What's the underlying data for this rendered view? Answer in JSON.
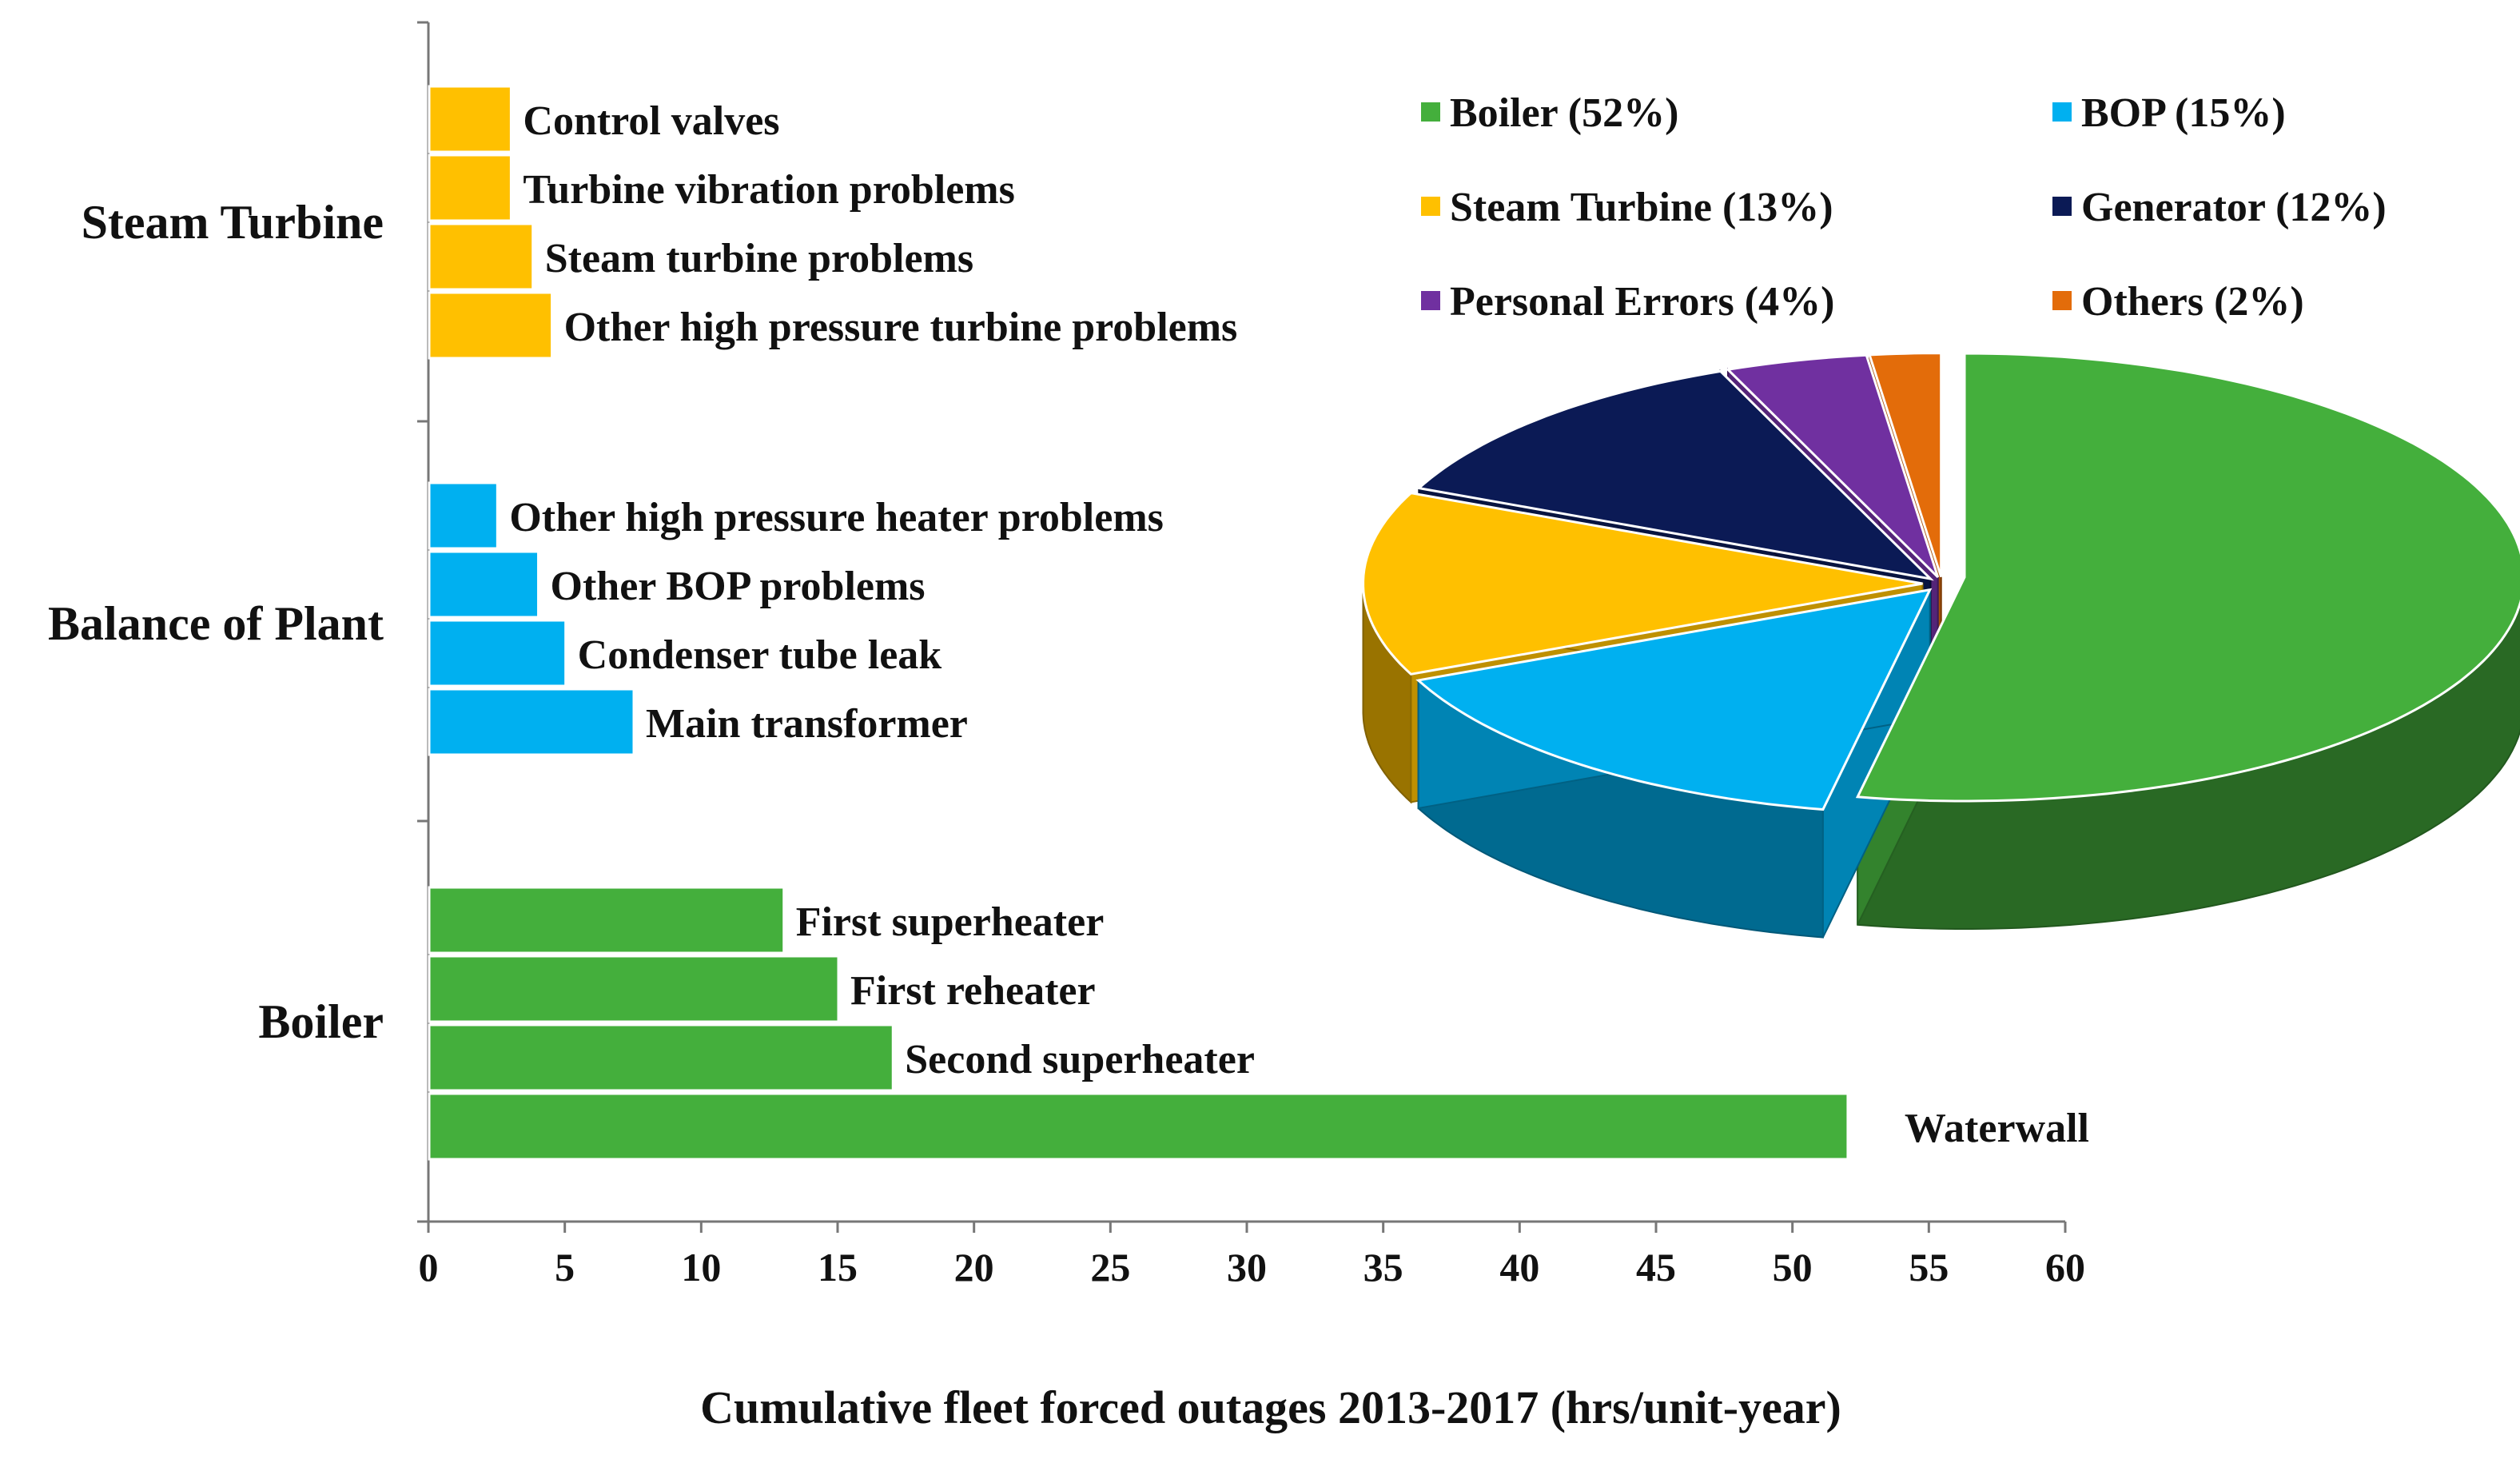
{
  "chart_data": [
    {
      "type": "bar",
      "orientation": "horizontal",
      "xlabel": "Cumulative fleet forced outages 2013-2017 (hrs/unit-year)",
      "xlim": [
        0,
        60
      ],
      "xticks": [
        "0",
        "5",
        "10",
        "15",
        "20",
        "25",
        "30",
        "35",
        "40",
        "45",
        "50",
        "55",
        "60"
      ],
      "groups": [
        {
          "name": "Steam Turbine",
          "color": "#FFC000",
          "items": [
            {
              "label": "Control valves",
              "value": 3.0
            },
            {
              "label": "Turbine vibration problems",
              "value": 3.0
            },
            {
              "label": "Steam turbine problems",
              "value": 3.8
            },
            {
              "label": "Other high pressure turbine problems",
              "value": 4.5
            }
          ]
        },
        {
          "name": "Balance of Plant",
          "color": "#00B0F0",
          "items": [
            {
              "label": "Other high pressure heater problems",
              "value": 2.5
            },
            {
              "label": "Other BOP problems",
              "value": 4.0
            },
            {
              "label": "Condenser tube leak",
              "value": 5.0
            },
            {
              "label": "Main transformer",
              "value": 7.5
            }
          ]
        },
        {
          "name": "Boiler",
          "color": "#44AF3C",
          "items": [
            {
              "label": "First superheater",
              "value": 13.0
            },
            {
              "label": "First reheater",
              "value": 15.0
            },
            {
              "label": "Second superheater",
              "value": 17.0
            },
            {
              "label": "Waterwall",
              "value": 52.0
            }
          ]
        }
      ]
    },
    {
      "type": "pie",
      "style": "3d-exploded",
      "slices": [
        {
          "label": "Boiler (52%)",
          "value": 52,
          "color": "#44AF3C"
        },
        {
          "label": "BOP (15%)",
          "value": 15,
          "color": "#00B0F0"
        },
        {
          "label": "Steam Turbine (13%)",
          "value": 13,
          "color": "#FFC000"
        },
        {
          "label": "Generator (12%)",
          "value": 12,
          "color": "#0B1A55"
        },
        {
          "label": "Personal Errors (4%)",
          "value": 4,
          "color": "#7030A0"
        },
        {
          "label": "Others (2%)",
          "value": 2,
          "color": "#E36C0A"
        }
      ],
      "legend_position": "top-right"
    }
  ]
}
